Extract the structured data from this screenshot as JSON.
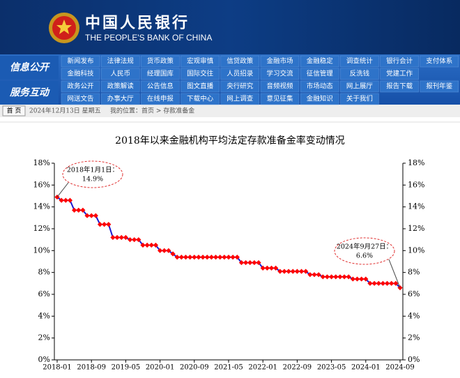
{
  "header": {
    "title_cn": "中国人民银行",
    "title_en": "THE PEOPLE'S BANK OF CHINA"
  },
  "nav": [
    {
      "label": "信息公开",
      "rows": [
        [
          "新闻发布",
          "法律法规",
          "货币政策",
          "宏观审慎",
          "信贷政策",
          "金融市场",
          "金融稳定",
          "调查统计",
          "银行会计",
          "支付体系"
        ],
        [
          "金融科技",
          "人民币",
          "经理国库",
          "国际交往",
          "人员招录",
          "学习交流",
          "征信管理",
          "反洗钱",
          "党建工作"
        ]
      ]
    },
    {
      "label": "服务互动",
      "rows": [
        [
          "政务公开",
          "政策解读",
          "公告信息",
          "图文直播",
          "央行研究",
          "音频视频",
          "市场动态",
          "网上展厅",
          "报告下载",
          "报刊年鉴"
        ],
        [
          "网送文告",
          "办事大厅",
          "在线申报",
          "下载中心",
          "网上调查",
          "意见征集",
          "金融知识",
          "关于我们"
        ]
      ]
    }
  ],
  "breadcrumb": {
    "button": "首 页",
    "date": "2024年12月13日 星期五",
    "location": "我的位置：首页 > 存款准备金"
  },
  "chart_data": {
    "type": "line",
    "title": "2018年以来金融机构平均法定存款准备金率变动情况",
    "categories": [
      "2018-01",
      null,
      null,
      null,
      null,
      null,
      null,
      null,
      "2018-09",
      null,
      null,
      null,
      null,
      null,
      null,
      null,
      "2019-05",
      null,
      null,
      null,
      null,
      null,
      null,
      null,
      "2020-01",
      null,
      null,
      null,
      null,
      null,
      null,
      null,
      "2020-09",
      null,
      null,
      null,
      null,
      null,
      null,
      null,
      "2021-05",
      null,
      null,
      null,
      null,
      null,
      null,
      null,
      "2022-01",
      null,
      null,
      null,
      null,
      null,
      null,
      null,
      "2022-09",
      null,
      null,
      null,
      null,
      null,
      null,
      null,
      "2023-05",
      null,
      null,
      null,
      null,
      null,
      null,
      null,
      "2024-01",
      null,
      null,
      null,
      null,
      null,
      null,
      null,
      "2024-09"
    ],
    "values": [
      14.9,
      14.6,
      14.6,
      14.6,
      13.7,
      13.7,
      13.7,
      13.2,
      13.2,
      13.2,
      12.4,
      12.4,
      12.4,
      11.2,
      11.2,
      11.2,
      11.2,
      11.0,
      11.0,
      11.0,
      10.5,
      10.5,
      10.5,
      10.5,
      10.0,
      10.0,
      10.0,
      9.7,
      9.4,
      9.4,
      9.4,
      9.4,
      9.4,
      9.4,
      9.4,
      9.4,
      9.4,
      9.4,
      9.4,
      9.4,
      9.4,
      9.4,
      9.4,
      8.9,
      8.9,
      8.9,
      8.9,
      8.9,
      8.4,
      8.4,
      8.4,
      8.4,
      8.1,
      8.1,
      8.1,
      8.1,
      8.1,
      8.1,
      8.1,
      7.8,
      7.8,
      7.8,
      7.6,
      7.6,
      7.6,
      7.6,
      7.6,
      7.6,
      7.6,
      7.4,
      7.4,
      7.4,
      7.4,
      7.0,
      7.0,
      7.0,
      7.0,
      7.0,
      7.0,
      7.0,
      6.6
    ],
    "color": "#1a1ad0",
    "marker_color": "#ff0000",
    "ylim": [
      0,
      18
    ],
    "yticks": [
      {
        "value": 0,
        "label": "0%"
      },
      {
        "value": 2,
        "label": "2%"
      },
      {
        "value": 4,
        "label": "4%"
      },
      {
        "value": 6,
        "label": "6%"
      },
      {
        "value": 8,
        "label": "8%"
      },
      {
        "value": 10,
        "label": "10%"
      },
      {
        "value": 12,
        "label": "12%"
      },
      {
        "value": 14,
        "label": "14%"
      },
      {
        "value": 16,
        "label": "16%"
      },
      {
        "value": 18,
        "label": "18%"
      }
    ],
    "y2lim": [
      0,
      18
    ],
    "y2ticks": [
      {
        "value": 0,
        "label": "0%"
      },
      {
        "value": 2,
        "label": "2%"
      },
      {
        "value": 4,
        "label": "4%"
      },
      {
        "value": 6,
        "label": "6%"
      },
      {
        "value": 8,
        "label": "8%"
      },
      {
        "value": 10,
        "label": "10%"
      },
      {
        "value": 12,
        "label": "12%"
      },
      {
        "value": 14,
        "label": "14%"
      },
      {
        "value": 16,
        "label": "16%"
      },
      {
        "value": 18,
        "label": "18%"
      }
    ],
    "annotations": [
      {
        "lines": [
          "2018年1月1日：",
          "14.9%"
        ]
      },
      {
        "lines": [
          "2024年9月27日：",
          "6.6%"
        ]
      }
    ]
  }
}
